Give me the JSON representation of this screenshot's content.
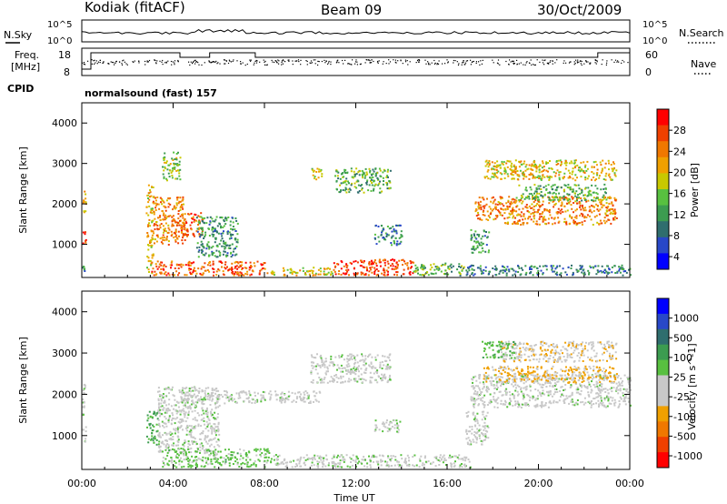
{
  "header": {
    "station": "Kodiak (fitACF)",
    "beam": "Beam 09",
    "date": "30/Oct/2009"
  },
  "noise_panel": {
    "left_label": "N.Sky",
    "right_label": "N.Search",
    "left_ticks": [
      "10^5",
      "10^0"
    ],
    "right_ticks": [
      "10^5",
      "10^0"
    ]
  },
  "freq_panel": {
    "left_label_1": "Freq.",
    "left_label_2": "[MHz]",
    "right_label": "Nave",
    "left_ticks": [
      "18",
      "8"
    ],
    "right_ticks": [
      "60",
      "0"
    ]
  },
  "cpid": {
    "label": "CPID",
    "text": "normalsound (fast) 157"
  },
  "colors": {
    "power_scale": [
      "#0000ff",
      "#2848c8",
      "#2f6e6e",
      "#3c9c50",
      "#58c040",
      "#c8c800",
      "#f0a000",
      "#f07800",
      "#f04000",
      "#ff0000"
    ],
    "velocity_scale": [
      "#ff0000",
      "#f04000",
      "#f07800",
      "#f0a000",
      "#c8c8c8",
      "#c8c8c8",
      "#58c040",
      "#3c9c50",
      "#2f6e6e",
      "#2848c8",
      "#0000ff"
    ]
  },
  "chart_data": [
    {
      "type": "heatmap",
      "panel": "power",
      "xlabel": "Time UT",
      "ylabel": "Slant Range [km]",
      "colorbar_label": "Power [dB]",
      "colorbar_ticks": [
        "28",
        "24",
        "20",
        "16",
        "12",
        "8",
        "4"
      ],
      "x_ticks": [
        "00:00",
        "04:00",
        "08:00",
        "12:00",
        "16:00",
        "20:00",
        "00:00"
      ],
      "y_ticks": [
        "1000",
        "2000",
        "3000",
        "4000"
      ],
      "ylim": [
        180,
        4500
      ],
      "xlim_hours": [
        0,
        24
      ],
      "x_tick_hours": [
        0,
        4,
        8,
        12,
        16,
        20,
        24
      ],
      "y_tick_values": [
        1000,
        2000,
        3000,
        4000
      ],
      "clim": [
        0,
        30
      ],
      "regions": [
        {
          "t0": 0.0,
          "t1": 0.15,
          "r0": 1000,
          "r1": 1400,
          "v": 26
        },
        {
          "t0": 0.0,
          "t1": 0.15,
          "r0": 1600,
          "r1": 2400,
          "v": 20
        },
        {
          "t0": 0.0,
          "t1": 0.15,
          "r0": 300,
          "r1": 500,
          "v": 10
        },
        {
          "t0": 2.8,
          "t1": 3.1,
          "r0": 300,
          "r1": 2500,
          "v": 18
        },
        {
          "t0": 3.1,
          "t1": 4.5,
          "r0": 1000,
          "r1": 2200,
          "v": 22
        },
        {
          "t0": 3.5,
          "t1": 4.3,
          "r0": 2600,
          "r1": 3300,
          "v": 14
        },
        {
          "t0": 4.3,
          "t1": 5.3,
          "r0": 1200,
          "r1": 1800,
          "v": 24
        },
        {
          "t0": 5.0,
          "t1": 6.8,
          "r0": 700,
          "r1": 1700,
          "v": 10
        },
        {
          "t0": 3.0,
          "t1": 8.0,
          "r0": 250,
          "r1": 600,
          "v": 24
        },
        {
          "t0": 8.0,
          "t1": 11.0,
          "r0": 250,
          "r1": 450,
          "v": 18
        },
        {
          "t0": 11.0,
          "t1": 14.5,
          "r0": 250,
          "r1": 650,
          "v": 26
        },
        {
          "t0": 14.5,
          "t1": 16.8,
          "r0": 250,
          "r1": 550,
          "v": 12
        },
        {
          "t0": 10.0,
          "t1": 10.5,
          "r0": 2600,
          "r1": 2900,
          "v": 16
        },
        {
          "t0": 11.0,
          "t1": 13.5,
          "r0": 2300,
          "r1": 2900,
          "v": 12
        },
        {
          "t0": 12.8,
          "t1": 14.0,
          "r0": 1000,
          "r1": 1500,
          "v": 8
        },
        {
          "t0": 16.8,
          "t1": 24.0,
          "r0": 250,
          "r1": 500,
          "v": 8
        },
        {
          "t0": 17.0,
          "t1": 17.8,
          "r0": 800,
          "r1": 1400,
          "v": 10
        },
        {
          "t0": 17.2,
          "t1": 18.5,
          "r0": 1600,
          "r1": 2200,
          "v": 22
        },
        {
          "t0": 18.5,
          "t1": 23.4,
          "r0": 1500,
          "r1": 2200,
          "v": 22
        },
        {
          "t0": 17.6,
          "t1": 23.4,
          "r0": 2600,
          "r1": 3100,
          "v": 18
        },
        {
          "t0": 19.0,
          "t1": 23.0,
          "r0": 2100,
          "r1": 2500,
          "v": 12
        }
      ]
    },
    {
      "type": "heatmap",
      "panel": "velocity",
      "xlabel": "Time UT",
      "ylabel": "Slant Range [km]",
      "colorbar_label": "Velocity [m s^-1]",
      "colorbar_ticks": [
        "1000",
        "500",
        "100",
        "25",
        "-25",
        "-100",
        "-500",
        "-1000"
      ],
      "x_ticks": [
        "00:00",
        "04:00",
        "08:00",
        "12:00",
        "16:00",
        "20:00",
        "00:00"
      ],
      "y_ticks": [
        "1000",
        "2000",
        "3000",
        "4000"
      ],
      "ylim": [
        180,
        4500
      ],
      "xlim_hours": [
        0,
        24
      ],
      "x_tick_hours": [
        0,
        4,
        8,
        12,
        16,
        20,
        24
      ],
      "y_tick_values": [
        1000,
        2000,
        3000,
        4000
      ],
      "clim": [
        -1000,
        1000
      ],
      "regions": [
        {
          "t0": 0.0,
          "t1": 0.15,
          "r0": 800,
          "r1": 2300,
          "v": -10
        },
        {
          "t0": 2.8,
          "t1": 3.3,
          "r0": 800,
          "r1": 1600,
          "v": 300
        },
        {
          "t0": 3.3,
          "t1": 6.0,
          "r0": 600,
          "r1": 2200,
          "v": 0
        },
        {
          "t0": 3.5,
          "t1": 8.5,
          "r0": 250,
          "r1": 700,
          "v": 150
        },
        {
          "t0": 8.5,
          "t1": 17.0,
          "r0": 250,
          "r1": 550,
          "v": 10
        },
        {
          "t0": 4.3,
          "t1": 10.5,
          "r0": 1800,
          "r1": 2100,
          "v": 5
        },
        {
          "t0": 10.0,
          "t1": 13.5,
          "r0": 2300,
          "r1": 3000,
          "v": -5
        },
        {
          "t0": 12.8,
          "t1": 14.0,
          "r0": 1100,
          "r1": 1400,
          "v": 0
        },
        {
          "t0": 16.8,
          "t1": 17.8,
          "r0": 800,
          "r1": 1600,
          "v": -5
        },
        {
          "t0": 17.0,
          "t1": 24.0,
          "r0": 1700,
          "r1": 2500,
          "v": 0
        },
        {
          "t0": 17.5,
          "t1": 23.4,
          "r0": 2300,
          "r1": 2700,
          "v": -300
        },
        {
          "t0": 18.3,
          "t1": 23.4,
          "r0": 2800,
          "r1": 3300,
          "v": -200
        },
        {
          "t0": 17.5,
          "t1": 19.0,
          "r0": 2900,
          "r1": 3300,
          "v": 200
        }
      ]
    }
  ]
}
